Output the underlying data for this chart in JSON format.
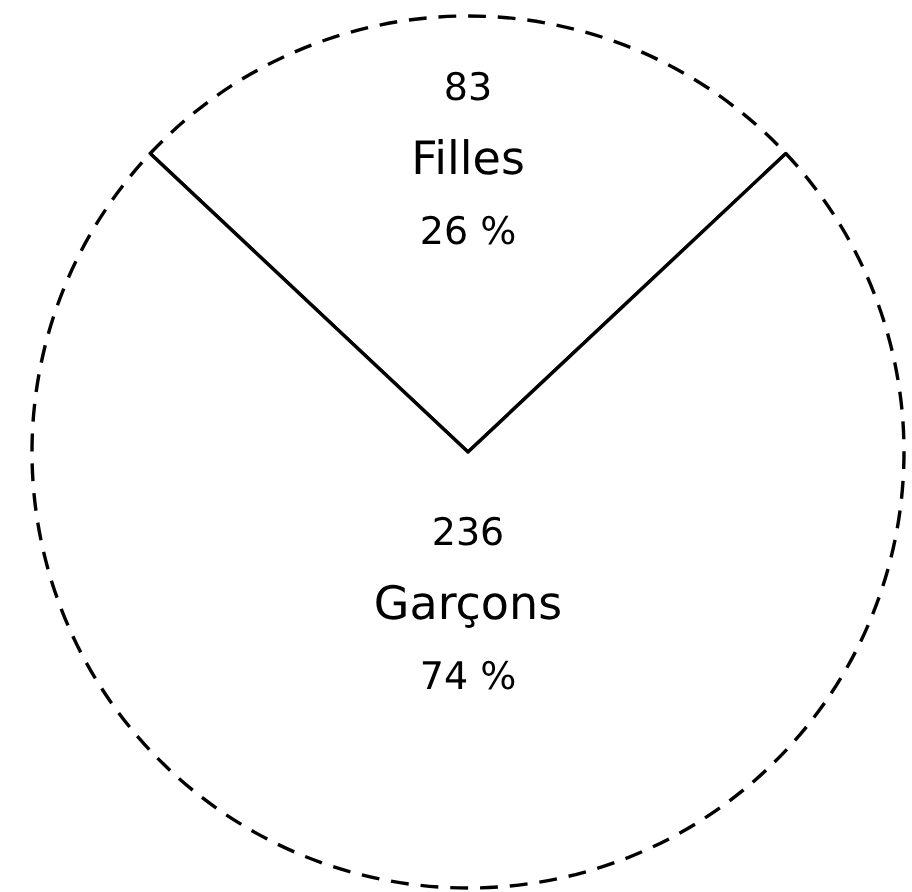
{
  "chart_data": {
    "type": "pie",
    "categories": [
      "Filles",
      "Garçons"
    ],
    "values": [
      26,
      74
    ],
    "colors": [
      "#ffffff",
      "#ffffff"
    ],
    "value_labels": [
      "26 %",
      "74 %"
    ],
    "line_style": "dashed",
    "annotations": [
      {
        "text": "83",
        "x": "Filles"
      },
      {
        "text": "236",
        "x": "Garçons"
      }
    ]
  }
}
